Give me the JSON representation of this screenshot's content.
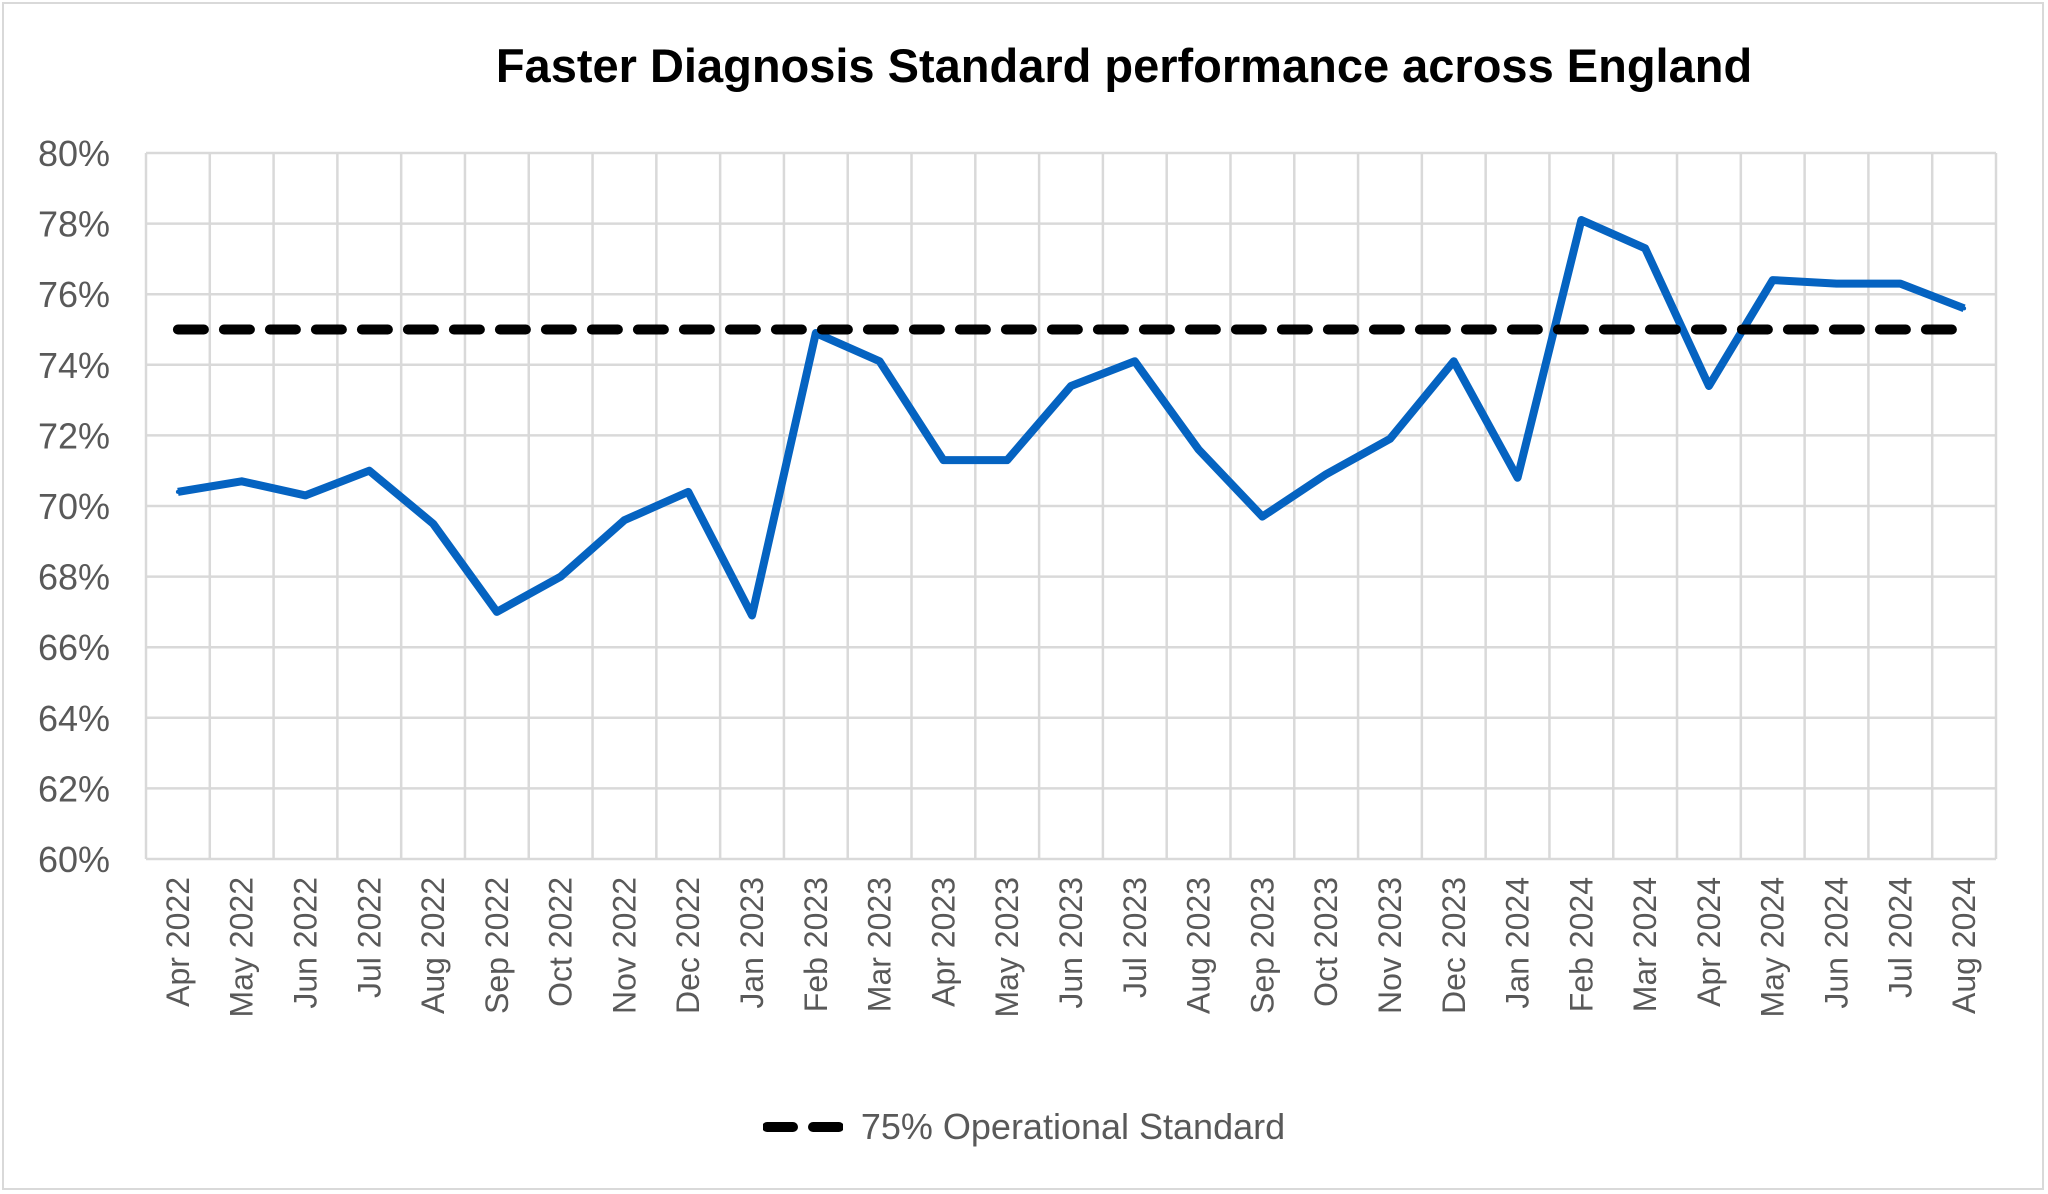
{
  "chart_data": {
    "type": "line",
    "title": "Faster Diagnosis Standard performance across England",
    "xlabel": "",
    "ylabel": "",
    "ylim": [
      60,
      80
    ],
    "y_ticks": [
      "60%",
      "62%",
      "64%",
      "66%",
      "68%",
      "70%",
      "72%",
      "74%",
      "76%",
      "78%",
      "80%"
    ],
    "grid": true,
    "legend_position": "bottom",
    "categories": [
      "Apr 2022",
      "May 2022",
      "Jun 2022",
      "Jul 2022",
      "Aug 2022",
      "Sep 2022",
      "Oct 2022",
      "Nov 2022",
      "Dec 2022",
      "Jan 2023",
      "Feb 2023",
      "Mar 2023",
      "Apr 2023",
      "May 2023",
      "Jun 2023",
      "Jul 2023",
      "Aug 2023",
      "Sep 2023",
      "Oct 2023",
      "Nov 2023",
      "Dec 2023",
      "Jan 2024",
      "Feb 2024",
      "Mar 2024",
      "Apr 2024",
      "May 2024",
      "Jun 2024",
      "Jul 2024",
      "Aug 2024"
    ],
    "series": [
      {
        "color": "#0563c1",
        "style": "solid",
        "values": [
          70.4,
          70.7,
          70.3,
          71.0,
          69.5,
          67.0,
          68.0,
          69.6,
          70.4,
          66.9,
          74.9,
          74.1,
          71.3,
          71.3,
          73.4,
          74.1,
          71.6,
          69.7,
          70.9,
          71.9,
          74.1,
          70.8,
          78.1,
          77.3,
          73.4,
          76.4,
          76.3,
          76.3,
          75.6
        ]
      },
      {
        "name": "75% Operational Standard",
        "color": "#000000",
        "style": "dashed",
        "values": [
          75,
          75,
          75,
          75,
          75,
          75,
          75,
          75,
          75,
          75,
          75,
          75,
          75,
          75,
          75,
          75,
          75,
          75,
          75,
          75,
          75,
          75,
          75,
          75,
          75,
          75,
          75,
          75,
          75
        ]
      }
    ]
  }
}
